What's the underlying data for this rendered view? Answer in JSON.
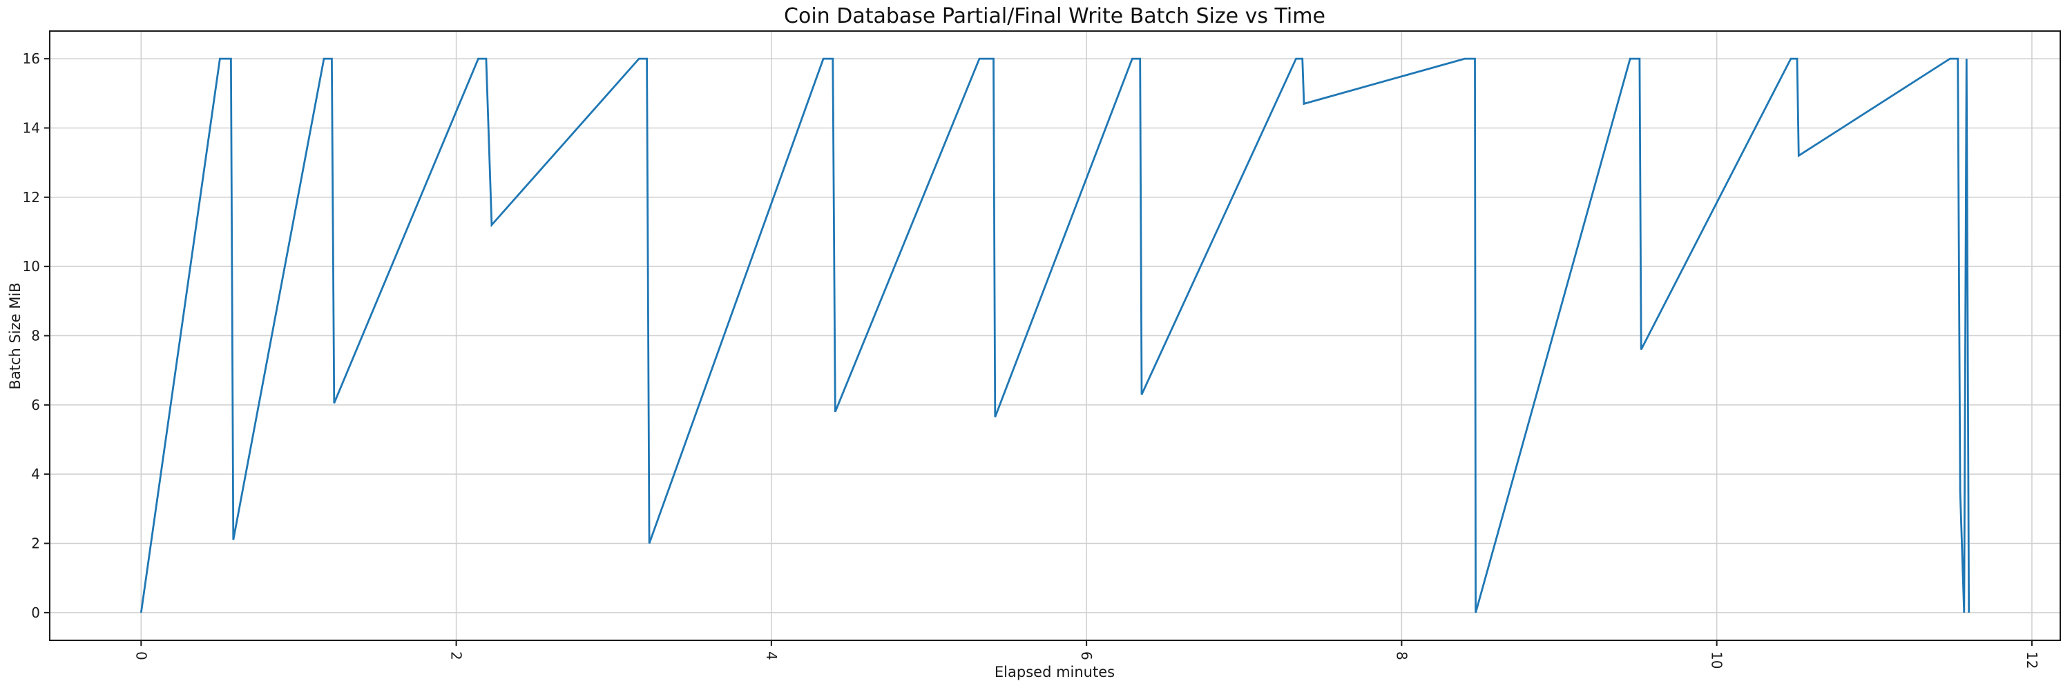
{
  "figure": {
    "background": "#ffffff"
  },
  "chart_data": {
    "type": "line",
    "title": "Coin Database Partial/Final Write Batch Size vs Time",
    "xlabel": "Elapsed minutes",
    "ylabel": "Batch Size MiB",
    "xlim": [
      -0.58,
      12.18
    ],
    "ylim": [
      -0.8,
      16.8
    ],
    "xticks": [
      0,
      2,
      4,
      6,
      8,
      10,
      12
    ],
    "xtick_labels": [
      "0",
      "2",
      "4",
      "6",
      "8",
      "10",
      "12"
    ],
    "xtick_rotation_deg": 90,
    "yticks": [
      0,
      2,
      4,
      6,
      8,
      10,
      12,
      14,
      16
    ],
    "ytick_labels": [
      "0",
      "2",
      "4",
      "6",
      "8",
      "10",
      "12",
      "14",
      "16"
    ],
    "grid": true,
    "legend": false,
    "colors": {
      "line": "#1f77b4",
      "grid": "#cfcfcf",
      "spine": "#1a1a1a",
      "tick_label": "#1a1a1a"
    },
    "series": [
      {
        "name": "batch-size-mib",
        "points": [
          [
            0.0,
            0.0
          ],
          [
            0.5,
            16.0
          ],
          [
            0.57,
            16.0
          ],
          [
            0.585,
            2.1
          ],
          [
            1.16,
            16.0
          ],
          [
            1.21,
            16.0
          ],
          [
            1.225,
            6.05
          ],
          [
            2.14,
            16.0
          ],
          [
            2.19,
            16.0
          ],
          [
            2.225,
            11.2
          ],
          [
            3.16,
            16.0
          ],
          [
            3.21,
            16.0
          ],
          [
            3.225,
            2.0
          ],
          [
            4.33,
            16.0
          ],
          [
            4.39,
            16.0
          ],
          [
            4.405,
            5.8
          ],
          [
            5.32,
            16.0
          ],
          [
            5.41,
            16.0
          ],
          [
            5.42,
            5.65
          ],
          [
            6.29,
            16.0
          ],
          [
            6.34,
            16.0
          ],
          [
            6.35,
            6.3
          ],
          [
            7.33,
            16.0
          ],
          [
            7.37,
            16.0
          ],
          [
            7.38,
            14.7
          ],
          [
            8.4,
            16.0
          ],
          [
            8.465,
            16.0
          ],
          [
            8.47,
            0.0
          ],
          [
            9.45,
            16.0
          ],
          [
            9.51,
            16.0
          ],
          [
            9.52,
            7.6
          ],
          [
            10.47,
            16.0
          ],
          [
            10.51,
            16.0
          ],
          [
            10.52,
            13.2
          ],
          [
            11.48,
            16.0
          ],
          [
            11.53,
            16.0
          ],
          [
            11.545,
            3.5
          ],
          [
            11.57,
            0.0
          ],
          [
            11.585,
            16.0
          ],
          [
            11.6,
            0.0
          ]
        ]
      }
    ]
  }
}
